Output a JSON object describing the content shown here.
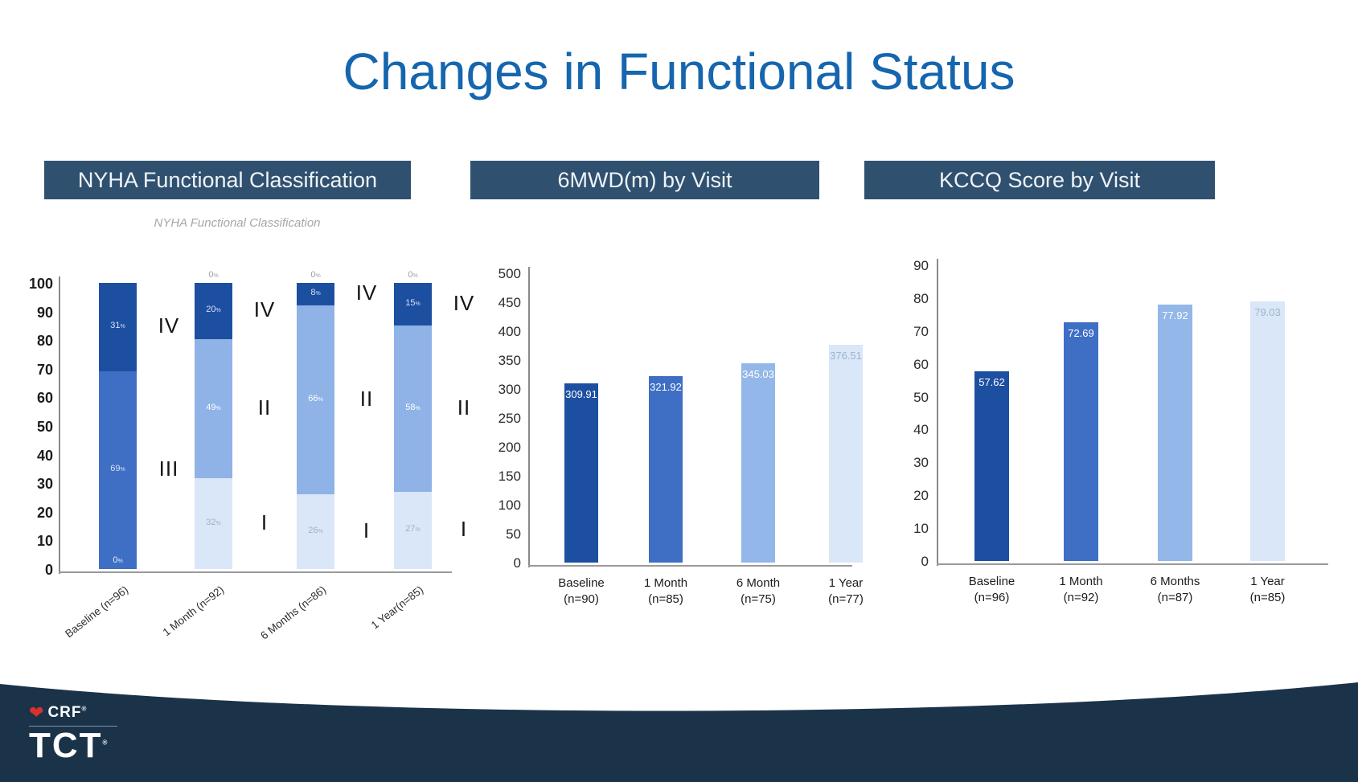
{
  "title": "Changes in Functional Status",
  "panels": {
    "nyha": {
      "header": "NYHA Functional Classification"
    },
    "mwd": {
      "header": "6MWD(m) by Visit"
    },
    "kccq": {
      "header": "KCCQ Score by Visit"
    }
  },
  "logo": {
    "crf_label": "CRF",
    "tct_label": "TCT",
    "registered_mark": "®",
    "heart_icon": "heart-icon"
  },
  "colors": {
    "title_text": "#1566ae",
    "header_bg": "#30506f",
    "wave": "#1b3349",
    "logo_heart": "#d8322d"
  },
  "chart_data": [
    {
      "id": "nyha",
      "type": "stacked-bar",
      "title": "NYHA Functional Classification",
      "categories": [
        "Baseline (n=96)",
        "1 Month (n=92)",
        "6 Months (n=86)",
        "1 Year(n=85)"
      ],
      "series": [
        {
          "name": "I",
          "color": "#d9e7f8",
          "label_color": "#9fb0ca",
          "values": [
            0,
            32,
            26,
            27
          ]
        },
        {
          "name": "II",
          "color": "#8fb3e6",
          "label_color": "#ffffff",
          "values": [
            0,
            49,
            66,
            58
          ]
        },
        {
          "name": "III",
          "color": "#3e6fc4",
          "label_color": "#d7e0f2",
          "values": [
            69,
            0,
            0,
            0
          ]
        },
        {
          "name": "IV",
          "color": "#1d4fa1",
          "label_color": "#d7e0f2",
          "values": [
            31,
            20,
            8,
            15
          ]
        }
      ],
      "zero_labels": [
        {
          "category": 0,
          "position": "bottom",
          "text": "0%"
        },
        {
          "category": 1,
          "position": "top",
          "text": "0%"
        },
        {
          "category": 2,
          "position": "top",
          "text": "0%"
        },
        {
          "category": 3,
          "position": "top",
          "text": "0%"
        }
      ],
      "ylim": [
        0,
        100
      ],
      "yticks": [
        0,
        10,
        20,
        30,
        40,
        50,
        60,
        70,
        80,
        90,
        100
      ],
      "value_suffix": "%",
      "legend_position": "none",
      "grid": false
    },
    {
      "id": "mwd",
      "type": "bar",
      "title": "6MWD(m) by Visit",
      "categories": [
        [
          "Baseline",
          "(n=90)"
        ],
        [
          "1 Month",
          "(n=85)"
        ],
        [
          "6 Month",
          "(n=75)"
        ],
        [
          "1 Year",
          "(n=77)"
        ]
      ],
      "values": [
        309.91,
        321.92,
        345.03,
        376.51
      ],
      "bar_colors": [
        "#1d4fa1",
        "#3e6fc4",
        "#93b7e8",
        "#d9e7f8"
      ],
      "label_colors": [
        "#ffffff",
        "#ffffff",
        "#ffffff",
        "#9fb2cc"
      ],
      "ylim": [
        0,
        500
      ],
      "yticks": [
        0,
        50,
        100,
        150,
        200,
        250,
        300,
        350,
        400,
        450,
        500
      ],
      "legend_position": "none",
      "grid": false
    },
    {
      "id": "kccq",
      "type": "bar",
      "title": "KCCQ Score by Visit",
      "categories": [
        [
          "Baseline",
          "(n=96)"
        ],
        [
          "1 Month",
          "(n=92)"
        ],
        [
          "6 Months",
          "(n=87)"
        ],
        [
          "1 Year",
          "(n=85)"
        ]
      ],
      "values": [
        57.62,
        72.69,
        77.92,
        79.03
      ],
      "bar_colors": [
        "#1d4fa1",
        "#3e6fc4",
        "#93b7e8",
        "#d9e7f8"
      ],
      "label_colors": [
        "#ffffff",
        "#ffffff",
        "#ffffff",
        "#9fb2cc"
      ],
      "ylim": [
        0,
        90
      ],
      "yticks": [
        0,
        10,
        20,
        30,
        40,
        50,
        60,
        70,
        80,
        90
      ],
      "legend_position": "none",
      "grid": false
    }
  ]
}
